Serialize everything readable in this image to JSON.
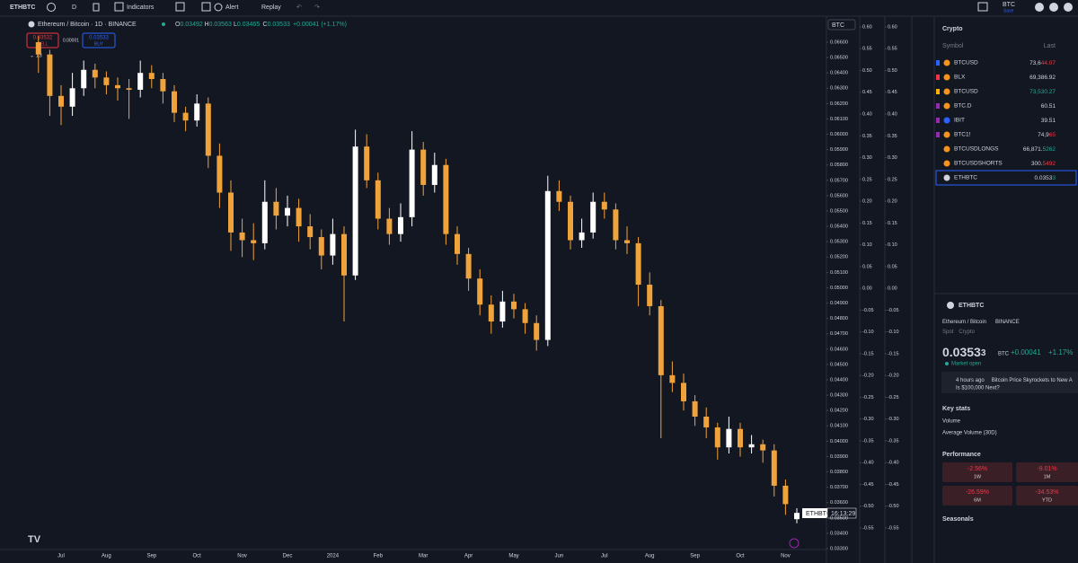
{
  "toolbar": {
    "symbol": "ETHBTC",
    "interval": "D",
    "indicators": "Indicators",
    "alert": "Alert",
    "replay": "Replay",
    "currency": "BTC",
    "save": "Save"
  },
  "chart_data": {
    "type": "candlestick",
    "title": "Ethereum / Bitcoin · 1D · BINANCE",
    "ohlc_legend": [
      [
        "O",
        "0.03492"
      ],
      [
        "H",
        "0.03563"
      ],
      [
        "L",
        "0.03465"
      ],
      [
        "C",
        "0.03533"
      ]
    ],
    "change": "+0.00041 (+1.17%)",
    "trade": {
      "sell_price": "0.03532",
      "sell": "SELL",
      "spread": "0.00001",
      "buy_price": "0.03533",
      "buy": "BUY"
    },
    "indicator_count": "13",
    "axis_currency": "BTC",
    "price_label": {
      "symbol": "ETHBTC",
      "countdown": "16:13:29"
    },
    "up_color": "#ffffff",
    "down_color": "#f0a33a",
    "categories": [
      null,
      null,
      "Jul",
      null,
      null,
      null,
      "Aug",
      null,
      null,
      null,
      "Sep",
      null,
      null,
      null,
      "Oct",
      null,
      null,
      null,
      "Nov",
      null,
      null,
      null,
      "Dec",
      null,
      null,
      null,
      "2024",
      null,
      null,
      null,
      "Feb",
      null,
      null,
      null,
      "Mar",
      null,
      null,
      null,
      "Apr",
      null,
      null,
      null,
      "May",
      null,
      null,
      null,
      "Jun",
      null,
      null,
      null,
      "Jul",
      null,
      null,
      null,
      "Aug",
      null,
      null,
      null,
      "Sep",
      null,
      null,
      null,
      "Oct",
      null,
      null,
      null,
      "Nov",
      null
    ],
    "ohlc": [
      [
        0.066,
        0.0664,
        0.064,
        0.0652
      ],
      [
        0.0652,
        0.0655,
        0.0612,
        0.0625
      ],
      [
        0.0625,
        0.0632,
        0.0606,
        0.0618
      ],
      [
        0.0618,
        0.064,
        0.0612,
        0.063
      ],
      [
        0.063,
        0.0648,
        0.0625,
        0.0642
      ],
      [
        0.0642,
        0.0646,
        0.063,
        0.0637
      ],
      [
        0.0637,
        0.0641,
        0.0626,
        0.0632
      ],
      [
        0.0632,
        0.0637,
        0.0622,
        0.063
      ],
      [
        0.063,
        0.0636,
        0.061,
        0.0629
      ],
      [
        0.0629,
        0.0648,
        0.0624,
        0.064
      ],
      [
        0.064,
        0.0645,
        0.063,
        0.0636
      ],
      [
        0.0636,
        0.064,
        0.062,
        0.0628
      ],
      [
        0.0628,
        0.0632,
        0.0608,
        0.0614
      ],
      [
        0.0614,
        0.0618,
        0.0602,
        0.0609
      ],
      [
        0.0609,
        0.0626,
        0.0605,
        0.062
      ],
      [
        0.062,
        0.0624,
        0.0578,
        0.0586
      ],
      [
        0.0586,
        0.0594,
        0.0552,
        0.0562
      ],
      [
        0.0562,
        0.057,
        0.0524,
        0.0536
      ],
      [
        0.0536,
        0.0545,
        0.052,
        0.0531
      ],
      [
        0.0531,
        0.0542,
        0.0518,
        0.0529
      ],
      [
        0.0529,
        0.057,
        0.0525,
        0.0556
      ],
      [
        0.0556,
        0.0565,
        0.0538,
        0.0547
      ],
      [
        0.0547,
        0.056,
        0.054,
        0.0552
      ],
      [
        0.0552,
        0.0558,
        0.053,
        0.054
      ],
      [
        0.054,
        0.0548,
        0.0525,
        0.0533
      ],
      [
        0.0533,
        0.0538,
        0.0512,
        0.0521
      ],
      [
        0.0521,
        0.0545,
        0.0515,
        0.0535
      ],
      [
        0.0535,
        0.054,
        0.0478,
        0.0508
      ],
      [
        0.0508,
        0.0603,
        0.0505,
        0.0592
      ],
      [
        0.0592,
        0.06,
        0.0565,
        0.057
      ],
      [
        0.057,
        0.0575,
        0.0538,
        0.0545
      ],
      [
        0.0545,
        0.0552,
        0.0528,
        0.0535
      ],
      [
        0.0535,
        0.0555,
        0.053,
        0.0546
      ],
      [
        0.0546,
        0.0602,
        0.054,
        0.059
      ],
      [
        0.059,
        0.0595,
        0.056,
        0.0567
      ],
      [
        0.0567,
        0.0588,
        0.0562,
        0.058
      ],
      [
        0.058,
        0.0584,
        0.0528,
        0.0535
      ],
      [
        0.0535,
        0.054,
        0.0515,
        0.0522
      ],
      [
        0.0522,
        0.0526,
        0.0498,
        0.0506
      ],
      [
        0.0506,
        0.0512,
        0.0482,
        0.0489
      ],
      [
        0.0489,
        0.0495,
        0.047,
        0.0478
      ],
      [
        0.0478,
        0.0498,
        0.0474,
        0.0491
      ],
      [
        0.0491,
        0.0496,
        0.048,
        0.0486
      ],
      [
        0.0486,
        0.049,
        0.047,
        0.0477
      ],
      [
        0.0477,
        0.0482,
        0.0459,
        0.0466
      ],
      [
        0.0466,
        0.0573,
        0.0462,
        0.0563
      ],
      [
        0.0563,
        0.057,
        0.055,
        0.0556
      ],
      [
        0.0556,
        0.056,
        0.0525,
        0.0531
      ],
      [
        0.0531,
        0.0545,
        0.0526,
        0.0536
      ],
      [
        0.0536,
        0.0562,
        0.0532,
        0.0556
      ],
      [
        0.0556,
        0.0562,
        0.0545,
        0.0551
      ],
      [
        0.0551,
        0.0555,
        0.0525,
        0.0531
      ],
      [
        0.0531,
        0.054,
        0.0522,
        0.0529
      ],
      [
        0.0529,
        0.0533,
        0.0488,
        0.0502
      ],
      [
        0.0502,
        0.051,
        0.0482,
        0.0488
      ],
      [
        0.0488,
        0.0492,
        0.0402,
        0.0443
      ],
      [
        0.0443,
        0.0452,
        0.0432,
        0.0438
      ],
      [
        0.0438,
        0.0444,
        0.042,
        0.0426
      ],
      [
        0.0426,
        0.043,
        0.041,
        0.0416
      ],
      [
        0.0416,
        0.0422,
        0.0402,
        0.0409
      ],
      [
        0.0409,
        0.0412,
        0.0388,
        0.0396
      ],
      [
        0.0396,
        0.0416,
        0.0392,
        0.0408
      ],
      [
        0.0408,
        0.0412,
        0.039,
        0.0396
      ],
      [
        0.0396,
        0.0404,
        0.0392,
        0.0398
      ],
      [
        0.0398,
        0.0401,
        0.0386,
        0.0394
      ],
      [
        0.0394,
        0.0398,
        0.0364,
        0.0371
      ],
      [
        0.0371,
        0.0375,
        0.0352,
        0.0359
      ],
      [
        0.03492,
        0.03563,
        0.03465,
        0.03533
      ]
    ],
    "ylim": [
      0.033,
      0.066
    ],
    "yticks": [
      {
        "value": 0.066,
        "label": "0.06600"
      },
      {
        "value": 0.065,
        "label": "0.06500"
      },
      {
        "value": 0.064,
        "label": "0.06400"
      },
      {
        "value": 0.063,
        "label": "0.06300"
      },
      {
        "value": 0.062,
        "label": "0.06200"
      },
      {
        "value": 0.061,
        "label": "0.06100"
      },
      {
        "value": 0.06,
        "label": "0.06000"
      },
      {
        "value": 0.059,
        "label": "0.05900"
      },
      {
        "value": 0.058,
        "label": "0.05800"
      },
      {
        "value": 0.057,
        "label": "0.05700"
      },
      {
        "value": 0.056,
        "label": "0.05600"
      },
      {
        "value": 0.055,
        "label": "0.05500"
      },
      {
        "value": 0.054,
        "label": "0.05400"
      },
      {
        "value": 0.053,
        "label": "0.05300"
      },
      {
        "value": 0.052,
        "label": "0.05200"
      },
      {
        "value": 0.051,
        "label": "0.05100"
      },
      {
        "value": 0.05,
        "label": "0.05000"
      },
      {
        "value": 0.049,
        "label": "0.04900"
      },
      {
        "value": 0.048,
        "label": "0.04800"
      },
      {
        "value": 0.047,
        "label": "0.04700"
      },
      {
        "value": 0.046,
        "label": "0.04600"
      },
      {
        "value": 0.045,
        "label": "0.04500"
      },
      {
        "value": 0.044,
        "label": "0.04400"
      },
      {
        "value": 0.043,
        "label": "0.04300"
      },
      {
        "value": 0.042,
        "label": "0.04200"
      },
      {
        "value": 0.041,
        "label": "0.04100"
      },
      {
        "value": 0.04,
        "label": "0.04000"
      },
      {
        "value": 0.039,
        "label": "0.03900"
      },
      {
        "value": 0.038,
        "label": "0.03800"
      },
      {
        "value": 0.037,
        "label": "0.03700"
      },
      {
        "value": 0.036,
        "label": "0.03600"
      },
      {
        "value": 0.035,
        "label": "0.03500"
      },
      {
        "value": 0.034,
        "label": "0.03400"
      },
      {
        "value": 0.033,
        "label": "0.03300"
      }
    ],
    "pct_axes": [
      {
        "ylim": [
          -0.55,
          0.6
        ],
        "yticks": [
          {
            "value": 0.6,
            "label": "0.60"
          },
          0.55,
          {
            "value": 0.5,
            "label": "0.50"
          },
          0.45,
          {
            "value": 0.4,
            "label": "0.40"
          },
          0.35,
          {
            "value": 0.3,
            "label": "0.30"
          },
          0.25,
          {
            "value": 0.2,
            "label": "0.20"
          },
          0.15,
          {
            "value": 0.1,
            "label": "0.10"
          },
          0.05,
          {
            "value": 0,
            "label": "0.00"
          },
          -0.05,
          {
            "value": -0.1,
            "label": "-0.10"
          },
          -0.15,
          {
            "value": -0.2,
            "label": "-0.20"
          },
          -0.25,
          {
            "value": -0.3,
            "label": "-0.30"
          },
          -0.35,
          {
            "value": -0.4,
            "label": "-0.40"
          },
          -0.45,
          {
            "value": -0.5,
            "label": "-0.50"
          },
          -0.55
        ]
      },
      {
        "ylim": [
          -0.55,
          0.6
        ],
        "yticks": [
          {
            "value": 0.6,
            "label": "0.60"
          },
          0.55,
          {
            "value": 0.5,
            "label": "0.50"
          },
          0.45,
          {
            "value": 0.4,
            "label": "0.40"
          },
          0.35,
          {
            "value": 0.3,
            "label": "0.30"
          },
          0.25,
          {
            "value": 0.2,
            "label": "0.20"
          },
          0.15,
          {
            "value": 0.1,
            "label": "0.10"
          },
          0.05,
          {
            "value": 0,
            "label": "0.00"
          },
          -0.05,
          {
            "value": -0.1,
            "label": "-0.10"
          },
          -0.15,
          {
            "value": -0.2,
            "label": "-0.20"
          },
          -0.25,
          {
            "value": -0.3,
            "label": "-0.30"
          },
          -0.35,
          {
            "value": -0.4,
            "label": "-0.40"
          },
          -0.45,
          {
            "value": -0.5,
            "label": "-0.50"
          },
          -0.55
        ]
      }
    ]
  },
  "watchlist": {
    "title": "Crypto",
    "columns": [
      "Symbol",
      "Last"
    ],
    "rows": [
      {
        "symbol": "BTCUSD",
        "last": "73,6",
        "tail": "44.07",
        "color": "#f23645"
      },
      {
        "symbol": "BLX",
        "last": "69,386.92",
        "tail": "",
        "color": "#d1d4dc"
      },
      {
        "symbol": "BTCUSD",
        "last": "",
        "tail": "73,530.27",
        "color": "#22ab94"
      },
      {
        "symbol": "BTC.D",
        "last": "60.51",
        "tail": "",
        "color": "#d1d4dc"
      },
      {
        "symbol": "IBIT",
        "last": "39.51",
        "tail": "",
        "color": "#d1d4dc"
      },
      {
        "symbol": "BTC1!",
        "last": "74,9",
        "tail": "65",
        "color": "#f23645"
      },
      {
        "symbol": "BTCUSDLONGS",
        "last": "66,871.",
        "tail": "5262",
        "color": "#22ab94"
      },
      {
        "symbol": "BTCUSDSHORTS",
        "last": "300.",
        "tail": "5492",
        "color": "#f23645"
      },
      {
        "symbol": "ETHBTC",
        "last": "0.0353",
        "tail": "3",
        "color": "#22ab94"
      }
    ]
  },
  "details": {
    "symbol": "ETHBTC",
    "name": "Ethereum / Bitcoin",
    "exchange": "BINANCE",
    "market": "Spot",
    "category": "Crypto",
    "price": "0.0353",
    "price_tail": "3",
    "currency": "BTC",
    "change": "+0.00041",
    "change_pct": "+1.17%",
    "status": "Market open",
    "news": {
      "time": "4 hours ago",
      "headline": "Bitcoin Price Skyrockets to New A",
      "headline_2": "Is $100,000 Next?"
    },
    "key_stats": "Key stats",
    "volume": "Volume",
    "avg_volume": "Average Volume (30D)",
    "performance_title": "Performance",
    "performance": [
      {
        "value": "-2.56%",
        "period": "1W"
      },
      {
        "value": "-9.01%",
        "period": "1M"
      },
      {
        "value": "-26.59%",
        "period": "6M"
      },
      {
        "value": "-34.53%",
        "period": "YTD"
      }
    ],
    "seasonals": "Seasonals"
  }
}
